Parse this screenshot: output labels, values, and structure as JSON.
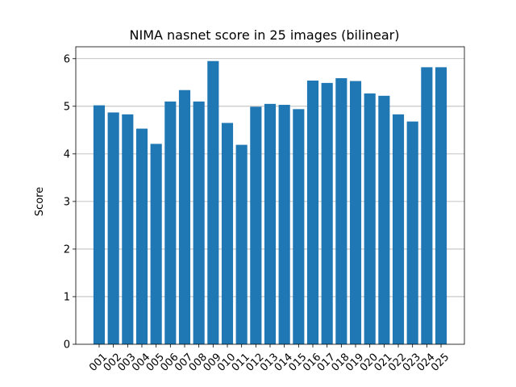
{
  "chart_data": {
    "type": "bar",
    "title": "NIMA nasnet score in 25 images (bilinear)",
    "xlabel": "",
    "ylabel": "Score",
    "categories": [
      "001",
      "002",
      "003",
      "004",
      "005",
      "006",
      "007",
      "008",
      "009",
      "010",
      "011",
      "012",
      "013",
      "014",
      "015",
      "016",
      "017",
      "018",
      "019",
      "020",
      "021",
      "022",
      "023",
      "024",
      "025"
    ],
    "values": [
      5.02,
      4.87,
      4.83,
      4.53,
      4.21,
      5.1,
      5.34,
      5.1,
      5.95,
      4.65,
      4.19,
      4.99,
      5.05,
      5.03,
      4.94,
      5.54,
      5.49,
      5.59,
      5.53,
      5.27,
      5.22,
      4.83,
      4.68,
      5.82,
      5.82
    ],
    "ylim": [
      0,
      6.25
    ],
    "yticks": [
      0,
      1,
      2,
      3,
      4,
      5,
      6
    ],
    "grid": "y",
    "bar_color": "#1f77b4",
    "grid_color": "#b0b0b0",
    "axis_color": "#000000"
  }
}
